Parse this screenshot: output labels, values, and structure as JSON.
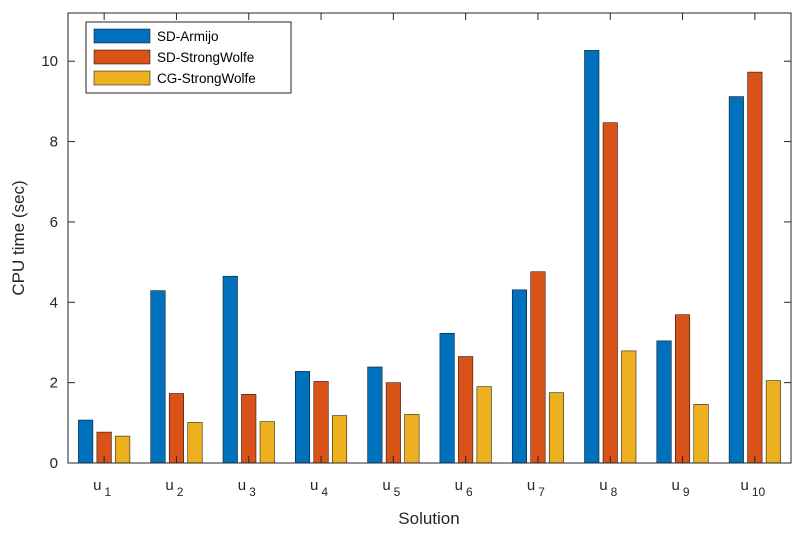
{
  "chart_data": {
    "type": "bar",
    "title": "",
    "xlabel": "Solution",
    "ylabel": "CPU time (sec)",
    "ylim": [
      0,
      11.2
    ],
    "yticks": [
      0,
      2,
      4,
      6,
      8,
      10
    ],
    "grid": false,
    "legend_position": "top-left",
    "categories": [
      {
        "base": "u",
        "sub": "1"
      },
      {
        "base": "u",
        "sub": "2"
      },
      {
        "base": "u",
        "sub": "3"
      },
      {
        "base": "u",
        "sub": "4"
      },
      {
        "base": "u",
        "sub": "5"
      },
      {
        "base": "u",
        "sub": "6"
      },
      {
        "base": "u",
        "sub": "7"
      },
      {
        "base": "u",
        "sub": "8"
      },
      {
        "base": "u",
        "sub": "9"
      },
      {
        "base": "u",
        "sub": "10"
      }
    ],
    "series": [
      {
        "name": "SD-Armijo",
        "color": "#0072BD",
        "values": [
          1.07,
          4.29,
          4.65,
          2.28,
          2.39,
          3.23,
          4.31,
          10.27,
          3.04,
          9.12
        ]
      },
      {
        "name": "SD-StrongWolfe",
        "color": "#D95319",
        "values": [
          0.77,
          1.73,
          1.71,
          2.03,
          2.0,
          2.65,
          4.76,
          8.47,
          3.69,
          9.73
        ]
      },
      {
        "name": "CG-StrongWolfe",
        "color": "#EDB120",
        "values": [
          0.67,
          1.01,
          1.03,
          1.18,
          1.21,
          1.9,
          1.75,
          2.79,
          1.46,
          2.05
        ]
      }
    ]
  }
}
